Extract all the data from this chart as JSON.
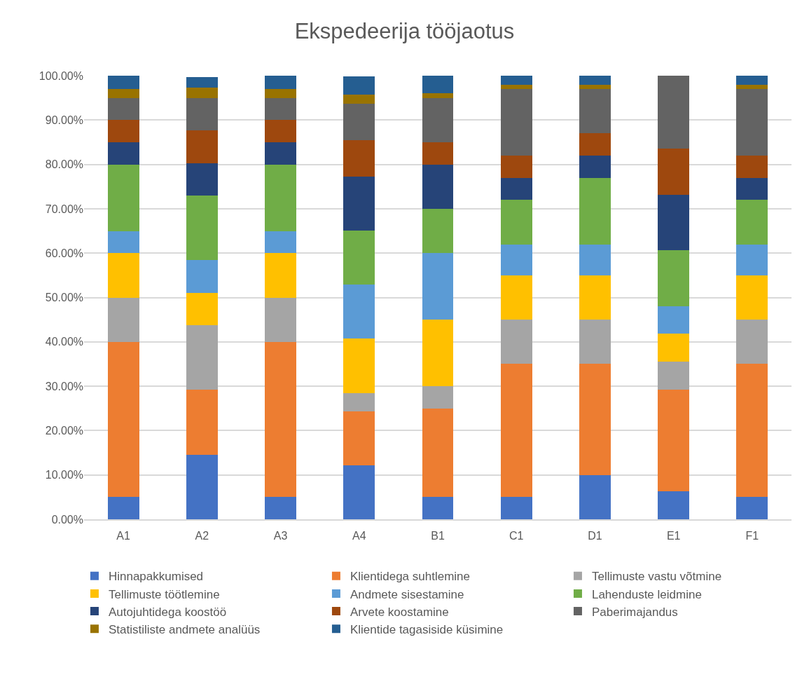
{
  "chart_data": {
    "type": "bar",
    "stacked": true,
    "title": "Ekspedeerija tööjaotus",
    "categories": [
      "A1",
      "A2",
      "A3",
      "A4",
      "B1",
      "C1",
      "D1",
      "E1",
      "F1"
    ],
    "series": [
      {
        "name": "Hinnapakkumised",
        "color": "#4472c4",
        "values": [
          5,
          14.6,
          5,
          12.2,
          5,
          5,
          10,
          6.3,
          5
        ]
      },
      {
        "name": "Klientidega suhtlemine",
        "color": "#ed7d31",
        "values": [
          35,
          14.6,
          35,
          12.2,
          20,
          30,
          25,
          22.9,
          30
        ]
      },
      {
        "name": "Tellimuste vastu võtmine",
        "color": "#a5a5a5",
        "values": [
          10,
          14.6,
          10,
          4.1,
          5,
          10,
          10,
          6.3,
          10
        ]
      },
      {
        "name": "Tellimuste töötlemine",
        "color": "#ffc000",
        "values": [
          10,
          7.3,
          10,
          12.2,
          15,
          10,
          10,
          6.3,
          10
        ]
      },
      {
        "name": "Andmete sisestamine",
        "color": "#5b9bd5",
        "values": [
          5,
          7.3,
          5,
          12.2,
          15,
          7,
          7,
          6.3,
          7
        ]
      },
      {
        "name": "Lahenduste leidmine",
        "color": "#70ad47",
        "values": [
          15,
          14.6,
          15,
          12.2,
          10,
          10,
          15,
          12.5,
          10
        ]
      },
      {
        "name": "Autojuhtidega koostöö",
        "color": "#264478",
        "values": [
          5,
          7.3,
          5,
          12.2,
          10,
          5,
          5,
          12.5,
          5
        ]
      },
      {
        "name": "Arvete koostamine",
        "color": "#9e480e",
        "values": [
          5,
          7.3,
          5,
          8.2,
          5,
          5,
          5,
          10.4,
          5
        ]
      },
      {
        "name": "Paberimajandus",
        "color": "#636363",
        "values": [
          5,
          7.3,
          5,
          8.2,
          10,
          15,
          10,
          16.7,
          15
        ]
      },
      {
        "name": "Statistiliste andmete analüüs",
        "color": "#997300",
        "values": [
          2,
          2.4,
          2,
          2.0,
          1,
          1,
          1,
          0,
          1
        ]
      },
      {
        "name": "Klientide tagasiside küsimine",
        "color": "#255e91",
        "values": [
          3,
          2.4,
          3,
          4.1,
          4,
          2,
          2,
          0,
          2
        ]
      }
    ],
    "ylim": [
      0,
      100
    ],
    "yticks": [
      {
        "value": 0,
        "label": "0.00%"
      },
      {
        "value": 10,
        "label": "10.00%"
      },
      {
        "value": 20,
        "label": "20.00%"
      },
      {
        "value": 30,
        "label": "30.00%"
      },
      {
        "value": 40,
        "label": "40.00%"
      },
      {
        "value": 50,
        "label": "50.00%"
      },
      {
        "value": 60,
        "label": "60.00%"
      },
      {
        "value": 70,
        "label": "70.00%"
      },
      {
        "value": 80,
        "label": "80.00%"
      },
      {
        "value": 90,
        "label": "90.00%"
      },
      {
        "value": 100,
        "label": "100.00%"
      }
    ],
    "grid": "y",
    "legend": "bottom"
  }
}
